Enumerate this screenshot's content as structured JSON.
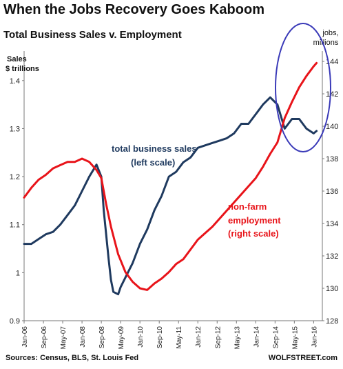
{
  "title": "When the Jobs Recovery Goes Kaboom",
  "subtitle": "Total Business Sales v. Employment",
  "source": "Sources: Census, BLS, St. Louis Fed",
  "brand": "WOLFSTREET.com",
  "colors": {
    "sales": "#1f3a5f",
    "jobs": "#e8141a",
    "highlight": "#3a3ab8",
    "axis": "#777777"
  },
  "chart_data": {
    "type": "line",
    "left_axis": {
      "label": [
        "Sales",
        "$ trillions"
      ],
      "range": [
        0.9,
        1.45
      ],
      "ticks": [
        0.9,
        1,
        1.1,
        1.2,
        1.3,
        1.4
      ],
      "tick_labels": [
        "0.9",
        "1",
        "1.1",
        "1.2",
        "1.3",
        "1.4"
      ]
    },
    "right_axis": {
      "label": [
        "jobs,",
        "millions"
      ],
      "range": [
        128,
        144.3
      ],
      "ticks": [
        128,
        130,
        132,
        134,
        136,
        138,
        140,
        142,
        144
      ],
      "tick_labels": [
        "128",
        "130",
        "132",
        "134",
        "136",
        "138",
        "140",
        "142",
        "144"
      ]
    },
    "x_axis": {
      "range": [
        2006.0,
        2016.3
      ],
      "ticks": [
        2006.0,
        2006.667,
        2007.333,
        2008.0,
        2008.667,
        2009.333,
        2010.0,
        2010.667,
        2011.333,
        2012.0,
        2012.667,
        2013.333,
        2014.0,
        2014.667,
        2015.333,
        2016.0
      ],
      "tick_labels": [
        "Jan-06",
        "Sep-06",
        "May-07",
        "Jan-08",
        "Sep-08",
        "May-09",
        "Jan-10",
        "Sep-10",
        "May-11",
        "Jan-12",
        "Sep-12",
        "May-13",
        "Jan-14",
        "Sep-14",
        "May-15",
        "Jan-16"
      ]
    },
    "grid": false,
    "series": [
      {
        "name": "total business sales",
        "annotation": [
          "total business sales",
          "(left scale)"
        ],
        "axis": "left",
        "x": [
          2006.0,
          2006.25,
          2006.5,
          2006.75,
          2007.0,
          2007.25,
          2007.5,
          2007.75,
          2008.0,
          2008.25,
          2008.5,
          2008.667,
          2008.75,
          2008.917,
          2009.0,
          2009.083,
          2009.25,
          2009.333,
          2009.5,
          2009.75,
          2010.0,
          2010.25,
          2010.5,
          2010.75,
          2011.0,
          2011.25,
          2011.5,
          2011.75,
          2012.0,
          2012.25,
          2012.5,
          2012.75,
          2013.0,
          2013.25,
          2013.5,
          2013.75,
          2014.0,
          2014.25,
          2014.5,
          2014.75,
          2015.0,
          2015.25,
          2015.5,
          2015.75,
          2016.0,
          2016.1
        ],
        "values": [
          1.06,
          1.06,
          1.07,
          1.08,
          1.085,
          1.1,
          1.12,
          1.14,
          1.17,
          1.2,
          1.225,
          1.2,
          1.13,
          1.03,
          0.985,
          0.96,
          0.955,
          0.97,
          0.99,
          1.02,
          1.06,
          1.09,
          1.13,
          1.16,
          1.2,
          1.21,
          1.23,
          1.24,
          1.26,
          1.265,
          1.27,
          1.275,
          1.28,
          1.29,
          1.31,
          1.31,
          1.33,
          1.35,
          1.365,
          1.35,
          1.3,
          1.32,
          1.32,
          1.3,
          1.29,
          1.295
        ]
      },
      {
        "name": "non-farm employment",
        "annotation": [
          "non-farm",
          "employment",
          "(right scale)"
        ],
        "axis": "right",
        "x": [
          2006.0,
          2006.25,
          2006.5,
          2006.75,
          2007.0,
          2007.25,
          2007.5,
          2007.75,
          2008.0,
          2008.25,
          2008.5,
          2008.667,
          2008.833,
          2009.0,
          2009.25,
          2009.5,
          2009.75,
          2010.0,
          2010.25,
          2010.5,
          2010.75,
          2011.0,
          2011.25,
          2011.5,
          2011.75,
          2012.0,
          2012.25,
          2012.5,
          2012.75,
          2013.0,
          2013.25,
          2013.5,
          2013.75,
          2014.0,
          2014.25,
          2014.5,
          2014.75,
          2015.0,
          2015.25,
          2015.5,
          2015.75,
          2016.0,
          2016.1
        ],
        "values": [
          135.6,
          136.2,
          136.7,
          137.0,
          137.4,
          137.6,
          137.8,
          137.8,
          138.0,
          137.8,
          137.3,
          136.8,
          135.2,
          133.8,
          132.1,
          131.0,
          130.4,
          130.0,
          129.9,
          130.3,
          130.6,
          131.0,
          131.5,
          131.8,
          132.4,
          133.0,
          133.4,
          133.8,
          134.3,
          134.8,
          135.3,
          135.8,
          136.3,
          136.8,
          137.5,
          138.3,
          139.0,
          140.5,
          141.5,
          142.4,
          143.1,
          143.7,
          143.9
        ]
      }
    ]
  }
}
